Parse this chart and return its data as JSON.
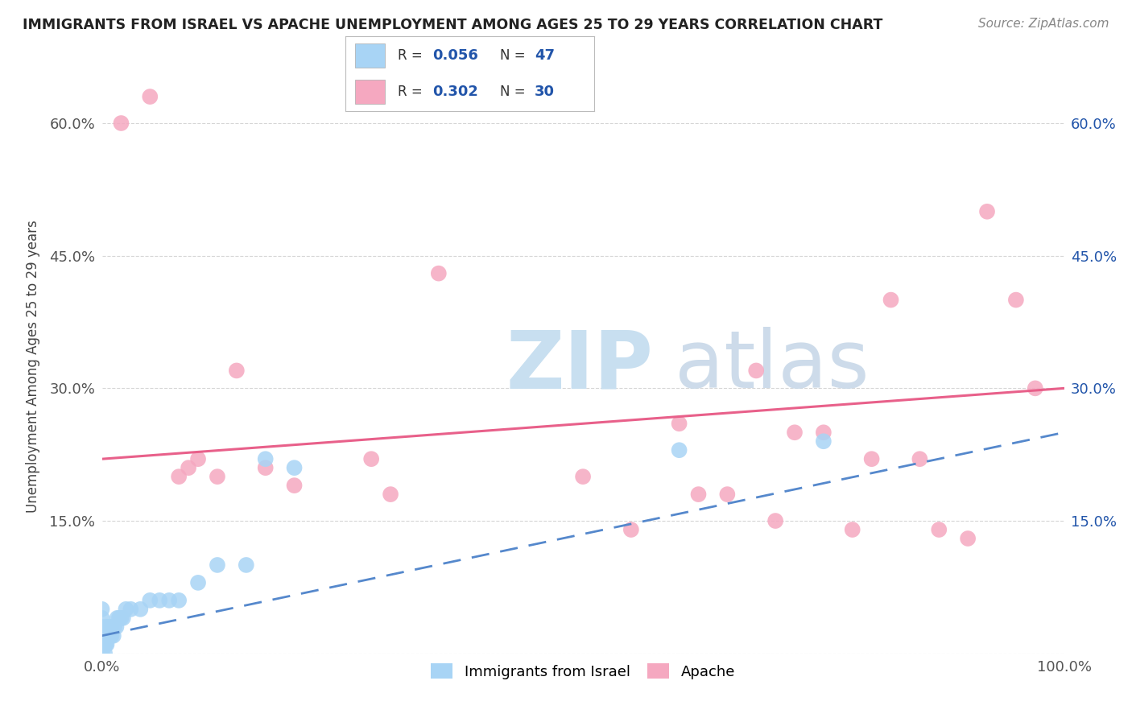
{
  "title": "IMMIGRANTS FROM ISRAEL VS APACHE UNEMPLOYMENT AMONG AGES 25 TO 29 YEARS CORRELATION CHART",
  "source": "Source: ZipAtlas.com",
  "ylabel": "Unemployment Among Ages 25 to 29 years",
  "xlim": [
    0,
    1.0
  ],
  "ylim": [
    0,
    0.65
  ],
  "xticks": [
    0.0,
    0.25,
    0.5,
    0.75,
    1.0
  ],
  "xticklabels": [
    "0.0%",
    "",
    "",
    "",
    "100.0%"
  ],
  "yticks": [
    0.0,
    0.15,
    0.3,
    0.45,
    0.6
  ],
  "yticklabels": [
    "",
    "15.0%",
    "30.0%",
    "45.0%",
    "60.0%"
  ],
  "right_yticklabels": [
    "",
    "15.0%",
    "30.0%",
    "45.0%",
    "60.0%"
  ],
  "legend_labels": [
    "Immigrants from Israel",
    "Apache"
  ],
  "blue_color": "#a8d4f5",
  "pink_color": "#f5a8c0",
  "blue_line_color": "#5588cc",
  "pink_line_color": "#e8608a",
  "blue_line_style": "--",
  "pink_line_style": "-",
  "r_color": "#2255aa",
  "n_color": "#2255aa",
  "title_color": "#222222",
  "source_color": "#888888",
  "ylabel_color": "#444444",
  "grid_color": "#cccccc",
  "watermark_zip_color": "#c8dff0",
  "watermark_atlas_color": "#c8d8e8",
  "blue_scatter_x": [
    0.0,
    0.0,
    0.0,
    0.0,
    0.0,
    0.0,
    0.0,
    0.0,
    0.0,
    0.0,
    0.0,
    0.0,
    0.0,
    0.003,
    0.003,
    0.003,
    0.004,
    0.004,
    0.005,
    0.005,
    0.006,
    0.007,
    0.008,
    0.009,
    0.01,
    0.01,
    0.012,
    0.013,
    0.015,
    0.016,
    0.018,
    0.02,
    0.022,
    0.025,
    0.03,
    0.04,
    0.05,
    0.06,
    0.07,
    0.08,
    0.1,
    0.12,
    0.15,
    0.17,
    0.2,
    0.6,
    0.75
  ],
  "blue_scatter_y": [
    0.0,
    0.0,
    0.0,
    0.005,
    0.005,
    0.01,
    0.01,
    0.015,
    0.02,
    0.02,
    0.03,
    0.04,
    0.05,
    0.0,
    0.01,
    0.02,
    0.01,
    0.02,
    0.01,
    0.03,
    0.02,
    0.02,
    0.03,
    0.02,
    0.02,
    0.03,
    0.02,
    0.03,
    0.03,
    0.04,
    0.04,
    0.04,
    0.04,
    0.05,
    0.05,
    0.05,
    0.06,
    0.06,
    0.06,
    0.06,
    0.08,
    0.1,
    0.1,
    0.22,
    0.21,
    0.23,
    0.24
  ],
  "pink_scatter_x": [
    0.02,
    0.05,
    0.08,
    0.09,
    0.1,
    0.12,
    0.14,
    0.17,
    0.2,
    0.28,
    0.3,
    0.35,
    0.5,
    0.55,
    0.6,
    0.62,
    0.65,
    0.68,
    0.7,
    0.72,
    0.75,
    0.78,
    0.8,
    0.82,
    0.85,
    0.87,
    0.9,
    0.92,
    0.95,
    0.97
  ],
  "pink_scatter_y": [
    0.6,
    0.63,
    0.2,
    0.21,
    0.22,
    0.2,
    0.32,
    0.21,
    0.19,
    0.22,
    0.18,
    0.43,
    0.2,
    0.14,
    0.26,
    0.18,
    0.18,
    0.32,
    0.15,
    0.25,
    0.25,
    0.14,
    0.22,
    0.4,
    0.22,
    0.14,
    0.13,
    0.5,
    0.4,
    0.3
  ],
  "pink_line_y0": 0.22,
  "pink_line_y1": 0.3,
  "blue_line_y0": 0.02,
  "blue_line_y1": 0.25
}
